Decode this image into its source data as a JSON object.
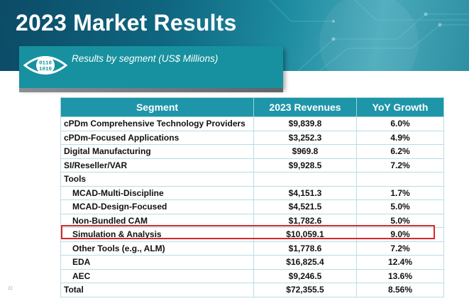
{
  "slide": {
    "title": "2023 Market Results",
    "subtitle": "Results by segment (US$ Millions)",
    "page_number": "22",
    "accent_color": "#1e95a8",
    "highlight_color": "#d9262a",
    "icon": "eye-binary-icon",
    "icon_digits": [
      "0110",
      "1010"
    ]
  },
  "table": {
    "headers": [
      "Segment",
      "2023 Revenues",
      "YoY Growth"
    ],
    "rows": [
      {
        "segment": "cPDm Comprehensive Technology Providers",
        "revenue": "$9,839.8",
        "growth": "6.0%"
      },
      {
        "segment": "cPDm-Focused Applications",
        "revenue": "$3,252.3",
        "growth": "4.9%"
      },
      {
        "segment": "Digital Manufacturing",
        "revenue": "$969.8",
        "growth": "6.2%"
      },
      {
        "segment": "SI/Reseller/VAR",
        "revenue": "$9,928.5",
        "growth": "7.2%"
      },
      {
        "segment": "Tools",
        "revenue": "",
        "growth": ""
      },
      {
        "segment": "MCAD-Multi-Discipline",
        "revenue": "$4,151.3",
        "growth": "1.7%"
      },
      {
        "segment": "MCAD-Design-Focused",
        "revenue": "$4,521.5",
        "growth": "5.0%"
      },
      {
        "segment": "Non-Bundled CAM",
        "revenue": "$1,782.6",
        "growth": "5.0%"
      },
      {
        "segment": "Simulation & Analysis",
        "revenue": "$10,059.1",
        "growth": "9.0%"
      },
      {
        "segment": "Other Tools (e.g., ALM)",
        "revenue": "$1,778.6",
        "growth": "7.2%"
      },
      {
        "segment": "EDA",
        "revenue": "$16,825.4",
        "growth": "12.4%"
      },
      {
        "segment": "AEC",
        "revenue": "$9,246.5",
        "growth": "13.6%"
      },
      {
        "segment": "Total",
        "revenue": "$72,355.5",
        "growth": "8.56%"
      }
    ]
  }
}
